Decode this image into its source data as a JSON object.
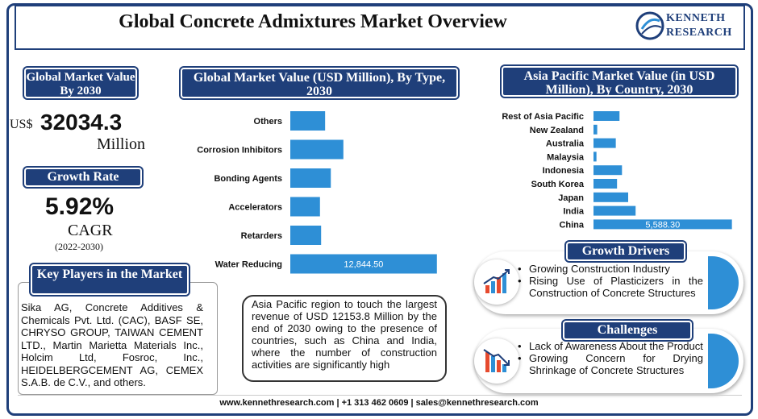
{
  "header": {
    "title": "Global Concrete Admixtures Market Overview"
  },
  "logo": {
    "line1": "KENNETH",
    "line2": "RESEARCH"
  },
  "left": {
    "market_badge": "Global Market Value By 2030",
    "currency": "US$",
    "value": "32034.3",
    "unit": "Million",
    "growth_badge": "Growth Rate",
    "growth_value": "5.92%",
    "cagr": "CAGR",
    "period": "(2022-2030)",
    "players_badge": "Key Players in the Market",
    "players_text": "Sika AG, Concrete Additives & Chemicals Pvt. Ltd. (CAC), BASF SE, CHRYSO GROUP, TAIWAN CEMENT LTD., Martin Marietta Materials Inc., Holcim Ltd, Fosroc, Inc., HEIDELBERGCEMENT AG, CEMEX S.A.B. de C.V., and others."
  },
  "middle": {
    "chart_badge": "Global Market Value (USD Million), By Type, 2030",
    "note": "Asia Pacific region to touch the largest revenue of USD 12153.8 Million by the end of 2030 owing to the presence of countries, such as China and India, where the number of construction activities are significantly high"
  },
  "right": {
    "chart_badge": "Asia Pacific Market Value (in USD Million), By Country, 2030",
    "drivers_badge": "Growth Drivers",
    "drivers": [
      "Growing Construction Industry",
      "Rising Use of Plasticizers in the Construction of Concrete Structures"
    ],
    "challenges_badge": "Challenges",
    "challenges": [
      "Lack of Awareness About the Product",
      "Growing Concern for Drying Shrinkage of Concrete Structures"
    ]
  },
  "footer": {
    "text": "www.kennethresearch.com | +1 313 462 0609 | sales@kennethresearch.com"
  },
  "colors": {
    "navy": "#1f3f7a",
    "bar": "#2e8fd6"
  },
  "icons": {
    "logo": "globe-logo-icon",
    "drivers": "rising-bar-chart-icon",
    "challenges": "falling-bar-chart-icon"
  },
  "chart_data": [
    {
      "type": "bar",
      "orientation": "horizontal",
      "title": "Global Market Value (USD Million), By Type, 2030",
      "categories": [
        "Others",
        "Corrosion Inhibitors",
        "Bonding Agents",
        "Accelerators",
        "Retarders",
        "Water Reducing"
      ],
      "values": [
        3050,
        4650,
        3550,
        2600,
        2700,
        12844.5
      ],
      "value_labels": [
        "",
        "",
        "",
        "",
        "",
        "12,844.50"
      ],
      "xlim": [
        0,
        13000
      ],
      "grid": false,
      "axes_visible": false
    },
    {
      "type": "bar",
      "orientation": "horizontal",
      "title": "Asia Pacific Market Value (in USD Million), By Country, 2030",
      "categories": [
        "Rest of Asia Pacific",
        "New Zealand",
        "Australia",
        "Malaysia",
        "Indonesia",
        "South Korea",
        "Japan",
        "India",
        "China"
      ],
      "values": [
        1050,
        150,
        900,
        120,
        1150,
        950,
        1400,
        1700,
        5588.3
      ],
      "value_labels": [
        "",
        "",
        "",
        "",
        "",
        "",
        "",
        "",
        "5,588.30"
      ],
      "xlim": [
        0,
        5600
      ],
      "grid": false,
      "axes_visible": false
    }
  ]
}
